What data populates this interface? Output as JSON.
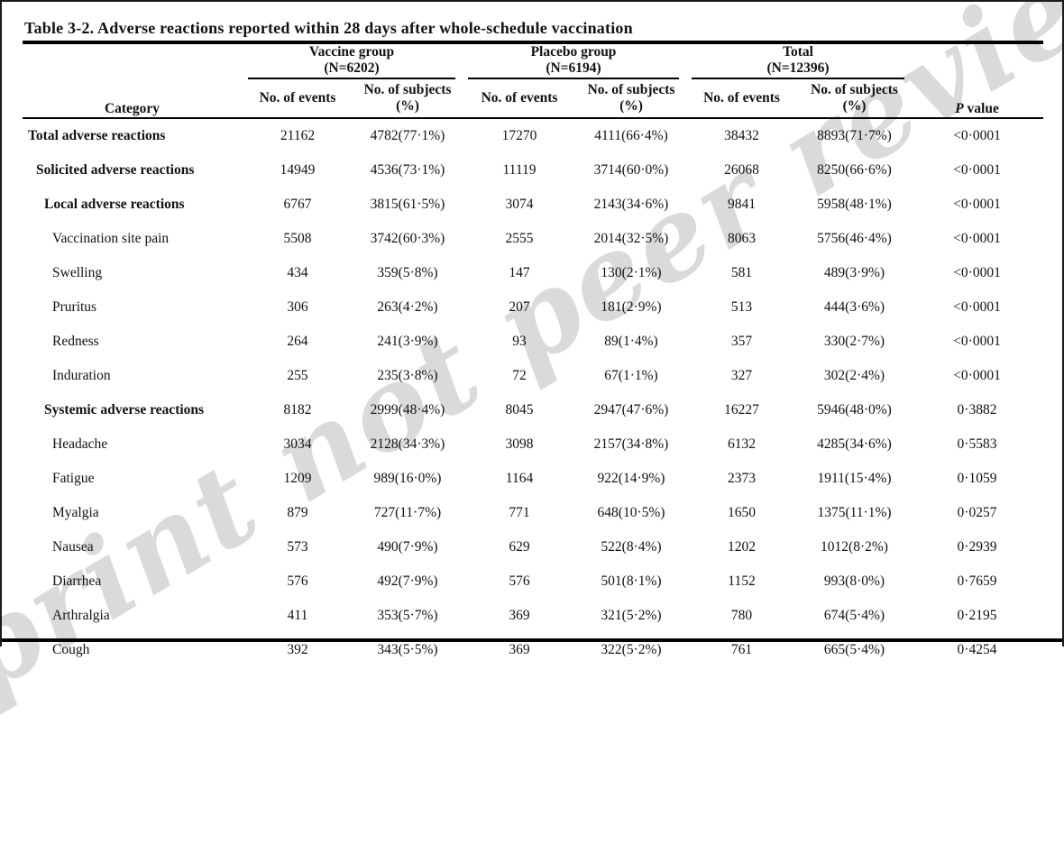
{
  "page": {
    "watermark": "Preprint not peer reviewed",
    "text_color": "#121212",
    "watermark_color": "#dadada"
  },
  "table": {
    "title": "Table 3-2. Adverse reactions reported within 28 days after whole-schedule vaccination",
    "category_header": "Category",
    "p_value_header": {
      "italic": "P",
      "rest": " value"
    },
    "groups": [
      {
        "label": "Vaccine group",
        "n": "(N=6202)"
      },
      {
        "label": "Placebo group",
        "n": "(N=6194)"
      },
      {
        "label": "Total",
        "n": "(N=12396)"
      }
    ],
    "subheaders": {
      "events": "No. of events",
      "subjects_line1": "No. of subjects",
      "subjects_line2": "(%)"
    },
    "rows": [
      {
        "category": "Total adverse reactions",
        "bold": true,
        "indent": 0,
        "values": [
          "21162",
          "4782(77·1%)",
          "17270",
          "4111(66·4%)",
          "38432",
          "8893(71·7%)",
          "<0·0001"
        ]
      },
      {
        "category": "Solicited adverse reactions",
        "bold": true,
        "indent": 1,
        "values": [
          "14949",
          "4536(73·1%)",
          "11119",
          "3714(60·0%)",
          "26068",
          "8250(66·6%)",
          "<0·0001"
        ]
      },
      {
        "category": "Local adverse reactions",
        "bold": true,
        "indent": 2,
        "values": [
          "6767",
          "3815(61·5%)",
          "3074",
          "2143(34·6%)",
          "9841",
          "5958(48·1%)",
          "<0·0001"
        ]
      },
      {
        "category": "Vaccination site pain",
        "bold": false,
        "indent": 3,
        "values": [
          "5508",
          "3742(60·3%)",
          "2555",
          "2014(32·5%)",
          "8063",
          "5756(46·4%)",
          "<0·0001"
        ]
      },
      {
        "category": "Swelling",
        "bold": false,
        "indent": 3,
        "values": [
          "434",
          "359(5·8%)",
          "147",
          "130(2·1%)",
          "581",
          "489(3·9%)",
          "<0·0001"
        ]
      },
      {
        "category": "Pruritus",
        "bold": false,
        "indent": 3,
        "values": [
          "306",
          "263(4·2%)",
          "207",
          "181(2·9%)",
          "513",
          "444(3·6%)",
          "<0·0001"
        ]
      },
      {
        "category": "Redness",
        "bold": false,
        "indent": 3,
        "values": [
          "264",
          "241(3·9%)",
          "93",
          "89(1·4%)",
          "357",
          "330(2·7%)",
          "<0·0001"
        ]
      },
      {
        "category": "Induration",
        "bold": false,
        "indent": 3,
        "values": [
          "255",
          "235(3·8%)",
          "72",
          "67(1·1%)",
          "327",
          "302(2·4%)",
          "<0·0001"
        ]
      },
      {
        "category": "Systemic adverse reactions",
        "bold": true,
        "indent": 2,
        "values": [
          "8182",
          "2999(48·4%)",
          "8045",
          "2947(47·6%)",
          "16227",
          "5946(48·0%)",
          "0·3882"
        ]
      },
      {
        "category": "Headache",
        "bold": false,
        "indent": 3,
        "values": [
          "3034",
          "2128(34·3%)",
          "3098",
          "2157(34·8%)",
          "6132",
          "4285(34·6%)",
          "0·5583"
        ]
      },
      {
        "category": "Fatigue",
        "bold": false,
        "indent": 3,
        "values": [
          "1209",
          "989(16·0%)",
          "1164",
          "922(14·9%)",
          "2373",
          "1911(15·4%)",
          "0·1059"
        ]
      },
      {
        "category": "Myalgia",
        "bold": false,
        "indent": 3,
        "values": [
          "879",
          "727(11·7%)",
          "771",
          "648(10·5%)",
          "1650",
          "1375(11·1%)",
          "0·0257"
        ]
      },
      {
        "category": "Nausea",
        "bold": false,
        "indent": 3,
        "values": [
          "573",
          "490(7·9%)",
          "629",
          "522(8·4%)",
          "1202",
          "1012(8·2%)",
          "0·2939"
        ]
      },
      {
        "category": "Diarrhea",
        "bold": false,
        "indent": 3,
        "values": [
          "576",
          "492(7·9%)",
          "576",
          "501(8·1%)",
          "1152",
          "993(8·0%)",
          "0·7659"
        ]
      },
      {
        "category": "Arthralgia",
        "bold": false,
        "indent": 3,
        "values": [
          "411",
          "353(5·7%)",
          "369",
          "321(5·2%)",
          "780",
          "674(5·4%)",
          "0·2195"
        ]
      },
      {
        "category": "Cough",
        "bold": false,
        "indent": 3,
        "values": [
          "392",
          "343(5·5%)",
          "369",
          "322(5·2%)",
          "761",
          "665(5·4%)",
          "0·4254"
        ]
      }
    ]
  }
}
